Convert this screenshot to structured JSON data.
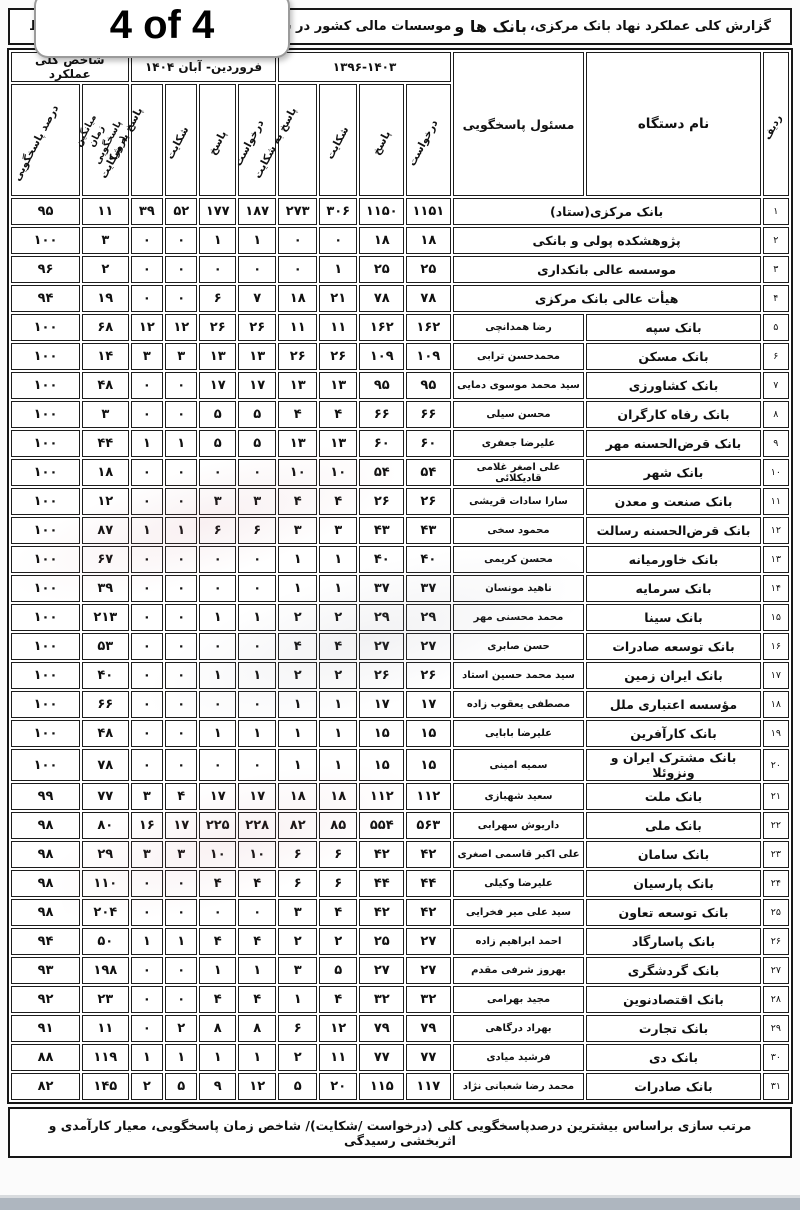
{
  "page_badge": "4 of 4",
  "title": {
    "part1": "گزارش کلی عملکرد نهاد بانک مرکزی، ",
    "emphasis": "بانک ها و",
    "part2": " موسسات مالی کشور در سامانه ملی انتشار و دسترسی آزاد به اط"
  },
  "table": {
    "headers": {
      "radif": "ردیف",
      "name": "نام دستگاه",
      "responsible": "مسئول پاسخگویی",
      "group_1396": "۱۳۹۶-۱۴۰۳",
      "group_1404": "فروردین- آبان ۱۴۰۴",
      "group_index": "شاخص کلی عملکرد",
      "sub": [
        "درخواست",
        "پاسخ",
        "شکایت",
        "پاسخ به شکایت"
      ],
      "mean": "میانگین زمان\nپاسخگویی (روز)",
      "percent": "درصد پاسخگویی"
    },
    "rows": [
      {
        "no": "۱",
        "name": "بانک مرکزی(ستاد)",
        "responsible": null,
        "values": [
          "۱۱۵۱",
          "۱۱۵۰",
          "۳۰۶",
          "۲۷۳",
          "۱۸۷",
          "۱۷۷",
          "۵۲",
          "۳۹",
          "۱۱",
          "۹۵"
        ]
      },
      {
        "no": "۲",
        "name": "پژوهشکده پولی و بانکی",
        "responsible": null,
        "values": [
          "۱۸",
          "۱۸",
          "۰",
          "۰",
          "۱",
          "۱",
          "۰",
          "۰",
          "۳",
          "۱۰۰"
        ]
      },
      {
        "no": "۳",
        "name": "موسسه عالی بانکداری",
        "responsible": null,
        "values": [
          "۲۵",
          "۲۵",
          "۱",
          "۰",
          "۰",
          "۰",
          "۰",
          "۰",
          "۲",
          "۹۶"
        ]
      },
      {
        "no": "۴",
        "name": "هیأت عالی بانک مرکزی",
        "responsible": null,
        "values": [
          "۷۸",
          "۷۸",
          "۲۱",
          "۱۸",
          "۷",
          "۶",
          "۰",
          "۰",
          "۱۹",
          "۹۴"
        ]
      },
      {
        "no": "۵",
        "name": "بانک سپه",
        "responsible": "رضا همدانچی",
        "values": [
          "۱۶۲",
          "۱۶۲",
          "۱۱",
          "۱۱",
          "۲۶",
          "۲۶",
          "۱۲",
          "۱۲",
          "۶۸",
          "۱۰۰"
        ]
      },
      {
        "no": "۶",
        "name": "بانک مسکن",
        "responsible": "محمدحسن ترابی",
        "values": [
          "۱۰۹",
          "۱۰۹",
          "۲۶",
          "۲۶",
          "۱۳",
          "۱۳",
          "۳",
          "۳",
          "۱۴",
          "۱۰۰"
        ]
      },
      {
        "no": "۷",
        "name": "بانک کشاورزی",
        "responsible": "سید محمد موسوی دمایی",
        "values": [
          "۹۵",
          "۹۵",
          "۱۳",
          "۱۳",
          "۱۷",
          "۱۷",
          "۰",
          "۰",
          "۴۸",
          "۱۰۰"
        ]
      },
      {
        "no": "۸",
        "name": "بانک رفاه کارگران",
        "responsible": "محسن سیلی",
        "values": [
          "۶۶",
          "۶۶",
          "۴",
          "۴",
          "۵",
          "۵",
          "۰",
          "۰",
          "۳",
          "۱۰۰"
        ]
      },
      {
        "no": "۹",
        "name": "بانک قرض‌الحسنه مهر",
        "responsible": "علیرضا جعفری",
        "values": [
          "۶۰",
          "۶۰",
          "۱۳",
          "۱۳",
          "۵",
          "۵",
          "۱",
          "۱",
          "۴۴",
          "۱۰۰"
        ]
      },
      {
        "no": "۱۰",
        "name": "بانک شهر",
        "responsible": "علی اصغر غلامی قادیکلائی",
        "values": [
          "۵۴",
          "۵۴",
          "۱۰",
          "۱۰",
          "۰",
          "۰",
          "۰",
          "۰",
          "۱۸",
          "۱۰۰"
        ]
      },
      {
        "no": "۱۱",
        "name": "بانک صنعت و معدن",
        "responsible": "سارا سادات قریشی",
        "values": [
          "۲۶",
          "۲۶",
          "۴",
          "۴",
          "۳",
          "۳",
          "۰",
          "۰",
          "۱۲",
          "۱۰۰"
        ]
      },
      {
        "no": "۱۲",
        "name": "بانک قرض‌الحسنه رسالت",
        "responsible": "محمود سخی",
        "values": [
          "۴۳",
          "۴۳",
          "۳",
          "۳",
          "۶",
          "۶",
          "۱",
          "۱",
          "۸۷",
          "۱۰۰"
        ]
      },
      {
        "no": "۱۳",
        "name": "بانک خاورمیانه",
        "responsible": "محسن کریمی",
        "values": [
          "۴۰",
          "۴۰",
          "۱",
          "۱",
          "۰",
          "۰",
          "۰",
          "۰",
          "۶۷",
          "۱۰۰"
        ]
      },
      {
        "no": "۱۴",
        "name": "بانک سرمایه",
        "responsible": "ناهید مونسان",
        "values": [
          "۳۷",
          "۳۷",
          "۱",
          "۱",
          "۰",
          "۰",
          "۰",
          "۰",
          "۳۹",
          "۱۰۰"
        ]
      },
      {
        "no": "۱۵",
        "name": "بانک سینا",
        "responsible": "محمد محسنی مهر",
        "values": [
          "۲۹",
          "۲۹",
          "۲",
          "۲",
          "۱",
          "۱",
          "۰",
          "۰",
          "۲۱۳",
          "۱۰۰"
        ]
      },
      {
        "no": "۱۶",
        "name": "بانک توسعه صادرات",
        "responsible": "حسن صابری",
        "values": [
          "۲۷",
          "۲۷",
          "۴",
          "۴",
          "۰",
          "۰",
          "۰",
          "۰",
          "۵۳",
          "۱۰۰"
        ]
      },
      {
        "no": "۱۷",
        "name": "بانک ایران زمین",
        "responsible": "سید محمد حسین استاد",
        "values": [
          "۲۶",
          "۲۶",
          "۲",
          "۲",
          "۱",
          "۱",
          "۰",
          "۰",
          "۴۰",
          "۱۰۰"
        ]
      },
      {
        "no": "۱۸",
        "name": "مؤسسه اعتباری ملل",
        "responsible": "مصطفی یعقوب زاده",
        "values": [
          "۱۷",
          "۱۷",
          "۱",
          "۱",
          "۰",
          "۰",
          "۰",
          "۰",
          "۶۶",
          "۱۰۰"
        ]
      },
      {
        "no": "۱۹",
        "name": "بانک کارآفرین",
        "responsible": "علیرضا بابایی",
        "values": [
          "۱۵",
          "۱۵",
          "۱",
          "۱",
          "۱",
          "۱",
          "۰",
          "۰",
          "۴۸",
          "۱۰۰"
        ]
      },
      {
        "no": "۲۰",
        "name": "بانک مشترک ایران و ونزوئلا",
        "responsible": "سمیه امینی",
        "values": [
          "۱۵",
          "۱۵",
          "۱",
          "۱",
          "۰",
          "۰",
          "۰",
          "۰",
          "۷۸",
          "۱۰۰"
        ]
      },
      {
        "no": "۲۱",
        "name": "بانک ملت",
        "responsible": "سعید شهبازی",
        "values": [
          "۱۱۲",
          "۱۱۲",
          "۱۸",
          "۱۸",
          "۱۷",
          "۱۷",
          "۴",
          "۳",
          "۷۷",
          "۹۹"
        ]
      },
      {
        "no": "۲۲",
        "name": "بانک ملی",
        "responsible": "داریوش سهرابی",
        "values": [
          "۵۶۳",
          "۵۵۴",
          "۸۵",
          "۸۲",
          "۲۲۸",
          "۲۲۵",
          "۱۷",
          "۱۶",
          "۸۰",
          "۹۸"
        ]
      },
      {
        "no": "۲۳",
        "name": "بانک سامان",
        "responsible": "علی اکبر قاسمی اصغری",
        "values": [
          "۴۲",
          "۴۲",
          "۶",
          "۶",
          "۱۰",
          "۱۰",
          "۳",
          "۳",
          "۲۹",
          "۹۸"
        ]
      },
      {
        "no": "۲۴",
        "name": "بانک پارسیان",
        "responsible": "علیرضا وکیلی",
        "values": [
          "۴۴",
          "۴۴",
          "۶",
          "۶",
          "۴",
          "۴",
          "۰",
          "۰",
          "۱۱۰",
          "۹۸"
        ]
      },
      {
        "no": "۲۵",
        "name": "بانک توسعه تعاون",
        "responsible": "سید علی میر فخرایی",
        "values": [
          "۴۲",
          "۴۲",
          "۴",
          "۳",
          "۰",
          "۰",
          "۰",
          "۰",
          "۲۰۴",
          "۹۸"
        ]
      },
      {
        "no": "۲۶",
        "name": "بانک پاسارگاد",
        "responsible": "احمد ابراهیم زاده",
        "values": [
          "۲۷",
          "۲۵",
          "۲",
          "۲",
          "۴",
          "۴",
          "۱",
          "۱",
          "۵۰",
          "۹۴"
        ]
      },
      {
        "no": "۲۷",
        "name": "بانک گردشگری",
        "responsible": "بهروز شرفی مقدم",
        "values": [
          "۲۷",
          "۲۷",
          "۵",
          "۳",
          "۱",
          "۱",
          "۰",
          "۰",
          "۱۹۸",
          "۹۳"
        ]
      },
      {
        "no": "۲۸",
        "name": "بانک اقتصادنوین",
        "responsible": "مجید بهرامی",
        "values": [
          "۳۲",
          "۳۲",
          "۴",
          "۱",
          "۴",
          "۴",
          "۰",
          "۰",
          "۲۳",
          "۹۲"
        ]
      },
      {
        "no": "۲۹",
        "name": "بانک تجارت",
        "responsible": "بهراد درگاهی",
        "values": [
          "۷۹",
          "۷۹",
          "۱۲",
          "۶",
          "۸",
          "۸",
          "۲",
          "۰",
          "۱۱",
          "۹۱"
        ]
      },
      {
        "no": "۳۰",
        "name": "بانک دی",
        "responsible": "فرشید میادی",
        "values": [
          "۷۷",
          "۷۷",
          "۱۱",
          "۲",
          "۱",
          "۱",
          "۱",
          "۱",
          "۱۱۹",
          "۸۸"
        ]
      },
      {
        "no": "۳۱",
        "name": "بانک صادرات",
        "responsible": "محمد رضا شعبانی نژاد",
        "values": [
          "۱۱۷",
          "۱۱۵",
          "۲۰",
          "۵",
          "۱۲",
          "۹",
          "۵",
          "۲",
          "۱۴۵",
          "۸۲"
        ]
      }
    ]
  },
  "footer": "مرتب سازی براساس بیشترین درصدپاسخگویی کلی (درخواست /شکایت)/ شاخص زمان پاسخگویی، معیار کارآمدی و اثربخشی رسیدگی"
}
